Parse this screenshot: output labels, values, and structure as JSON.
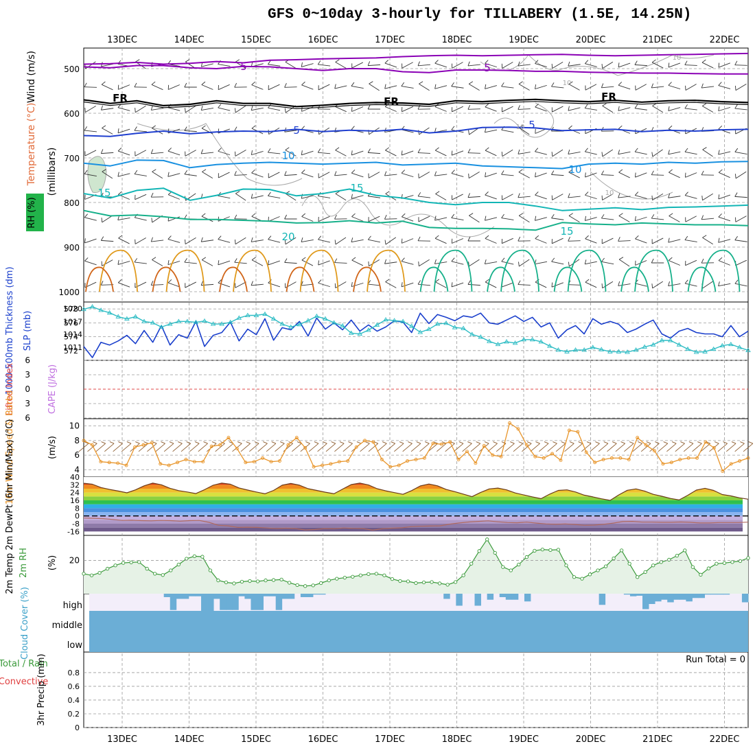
{
  "title": "GFS 0~10day 3-hourly for TILLABERY (1.5E, 14.25N)",
  "dates": [
    "13DEC",
    "14DEC",
    "15DEC",
    "16DEC",
    "17DEC",
    "18DEC",
    "19DEC",
    "20DEC",
    "21DEC",
    "22DEC"
  ],
  "colors": {
    "temp_purple": "#8a00b5",
    "temp_freezing": "#000000",
    "temp_blue": "#1f3fcf",
    "temp_lightblue": "#1890e0",
    "temp_teal": "#12b5b5",
    "temp_green": "#16b08a",
    "temp_orange": "#e09a1c",
    "rh_grey": "#a8a8a8",
    "thickness": "#1a3fcc",
    "slp": "#2cbcc4",
    "wind10": "#e8952a",
    "cloud": "#6baed6",
    "rh_green": "#3a9a3a",
    "rh_fill": "#e6f2e6"
  },
  "chart_data": [
    {
      "type": "line",
      "panel": "upper_air",
      "ylabel_parts": [
        "Wind (m/s)",
        "Temperature (°C)",
        "RH (%)",
        "(millibars)"
      ],
      "yticks": [
        500,
        600,
        700,
        800,
        900,
        1000
      ],
      "ylim": [
        1000,
        450
      ],
      "contour_labels": [
        "5",
        "5",
        "FR",
        "FR",
        "FR",
        "5",
        "5",
        "10",
        "10",
        "15",
        "15",
        "20",
        "15",
        "10",
        "10",
        "10",
        "10"
      ],
      "series": [
        {
          "value_label": "-5 line top",
          "values": [
            490,
            489,
            486,
            490,
            488,
            484,
            487,
            481,
            480,
            478,
            477,
            476,
            473,
            471,
            470,
            471,
            470,
            469,
            468,
            470,
            471,
            470,
            469,
            468,
            467,
            466
          ]
        },
        {
          "value_label": "-5 line",
          "values": [
            496,
            498,
            493,
            493,
            498,
            500,
            495,
            496,
            500,
            504,
            500,
            500,
            507,
            509,
            503,
            503,
            504,
            506,
            506,
            508,
            509,
            510,
            510,
            511,
            512,
            512
          ]
        },
        {
          "value_label": "FR",
          "values": [
            570,
            578,
            572,
            583,
            580,
            572,
            578,
            578,
            585,
            582,
            578,
            576,
            577,
            580,
            572,
            574,
            571,
            569,
            572,
            574,
            571,
            575,
            572,
            571,
            574,
            576
          ]
        },
        {
          "value_label": "5",
          "values": [
            650,
            652,
            645,
            640,
            646,
            642,
            640,
            641,
            636,
            641,
            638,
            640,
            636,
            644,
            640,
            632,
            631,
            633,
            639,
            637,
            636,
            641,
            638,
            640,
            637,
            636
          ]
        },
        {
          "value_label": "10",
          "values": [
            712,
            718,
            705,
            706,
            722,
            715,
            712,
            710,
            712,
            714,
            712,
            710,
            716,
            714,
            712,
            718,
            720,
            722,
            724,
            714,
            712,
            714,
            710,
            712,
            709,
            708
          ]
        },
        {
          "value_label": "15",
          "values": [
            780,
            790,
            773,
            768,
            795,
            784,
            770,
            771,
            785,
            780,
            770,
            784,
            790,
            800,
            805,
            800,
            800,
            808,
            818,
            815,
            812,
            816,
            811,
            810,
            808,
            806
          ]
        },
        {
          "value_label": "20",
          "values": [
            818,
            830,
            828,
            832,
            838,
            838,
            840,
            842,
            846,
            845,
            841,
            846,
            842,
            856,
            858,
            858,
            859,
            862,
            845,
            848,
            850,
            846,
            848,
            850,
            850,
            852
          ]
        }
      ]
    },
    {
      "type": "line",
      "panel": "thickness_slp",
      "left_axis_label": "1000-500mb Thickness (dm)",
      "right_axis_label": "SLP (mb)",
      "left_ticks": [
        572,
        574,
        576,
        578
      ],
      "right_ticks": [
        1011,
        1014,
        1017,
        1020
      ],
      "series": [
        {
          "name_label": "thickness",
          "values": [
            572.6,
            571.0,
            573.2,
            572.8,
            573.4,
            574.2,
            573.0,
            574.9,
            573.2,
            575.6,
            572.8,
            574.3,
            573.8,
            576.2,
            572.6,
            574.2,
            574.6,
            576.1,
            573.4,
            575.1,
            574.3,
            576.6,
            573.5,
            575.3,
            575.0,
            576.2,
            574.1,
            576.7,
            575.1,
            576.0,
            575.0,
            576.4,
            574.8,
            575.7,
            574.8,
            575.4,
            576.3,
            576.1,
            574.6,
            577.4,
            575.9,
            577.2,
            576.8,
            576.3,
            577.0,
            576.8,
            577.4,
            576.0,
            575.8,
            576.4,
            577.0,
            576.2,
            576.8,
            575.4,
            576.0,
            573.8,
            575.0,
            575.6,
            574.4,
            576.6,
            575.8,
            576.2,
            575.8,
            574.6,
            575.1,
            575.8,
            576.4,
            574.4,
            573.8,
            574.8,
            575.2,
            574.6,
            574.4,
            574.4,
            574.0,
            575.6,
            574.0,
            574.8
          ]
        },
        {
          "name_label": "SLP",
          "values": [
            1019.8,
            1020.4,
            1019.6,
            1019.0,
            1018.1,
            1017.6,
            1018.1,
            1017.0,
            1016.7,
            1015.7,
            1016.4,
            1017.0,
            1017.0,
            1016.8,
            1017.1,
            1016.4,
            1016.4,
            1016.8,
            1017.8,
            1018.4,
            1018.4,
            1018.7,
            1017.6,
            1016.4,
            1015.7,
            1016.3,
            1017.2,
            1018.2,
            1017.6,
            1016.7,
            1016.0,
            1014.3,
            1014.1,
            1015.0,
            1016.2,
            1017.4,
            1017.2,
            1017.0,
            1015.9,
            1014.5,
            1015.2,
            1016.4,
            1016.6,
            1015.6,
            1015.4,
            1014.0,
            1013.4,
            1012.4,
            1011.7,
            1012.3,
            1012.0,
            1012.8,
            1012.8,
            1012.3,
            1011.3,
            1010.4,
            1010.0,
            1010.4,
            1010.4,
            1011.0,
            1010.5,
            1010.0,
            1010.0,
            1009.9,
            1010.4,
            1011.1,
            1011.6,
            1012.6,
            1012.6,
            1011.6,
            1010.6,
            1009.9,
            1010.0,
            1010.6,
            1011.4,
            1011.7,
            1011.0,
            1010.3
          ]
        }
      ]
    },
    {
      "type": "line",
      "panel": "stability",
      "left_axis_label": "Lifted Index",
      "right_axis_label": "CAPE (J/kg)",
      "yticks": [
        6,
        3,
        0,
        -3,
        -6
      ],
      "ylim": [
        6,
        -6
      ],
      "series": [
        {
          "name_label": "lifted index zero",
          "values": [
            0
          ]
        }
      ]
    },
    {
      "type": "line",
      "panel": "wind10m",
      "ylabel": "10m Wind Speed & Barbs",
      "unit": "(m/s)",
      "yticks": [
        4,
        6,
        8,
        10
      ],
      "ylim": [
        3,
        11
      ],
      "series": [
        {
          "name_label": "10m wind speed",
          "values": [
            8.0,
            7.4,
            5.1,
            5.0,
            4.9,
            4.6,
            7.1,
            7.4,
            7.7,
            4.8,
            4.6,
            5.0,
            5.4,
            5.1,
            5.1,
            7.2,
            7.4,
            8.4,
            6.9,
            5.0,
            5.1,
            5.6,
            5.1,
            5.2,
            7.4,
            8.4,
            7.0,
            4.4,
            4.6,
            4.8,
            5.1,
            5.2,
            7.1,
            8.0,
            7.8,
            5.4,
            4.4,
            4.6,
            5.2,
            5.4,
            5.6,
            7.6,
            7.5,
            7.8,
            5.4,
            6.5,
            4.9,
            7.3,
            6.0,
            5.8,
            10.4,
            9.6,
            7.4,
            5.8,
            5.6,
            6.2,
            5.3,
            9.4,
            9.2,
            6.4,
            5.0,
            5.4,
            5.6,
            5.6,
            5.4,
            8.4,
            7.4,
            6.6,
            4.8,
            5.0,
            5.4,
            5.6,
            5.6,
            7.8,
            7.0,
            3.8,
            4.8,
            5.2,
            5.6
          ]
        }
      ]
    },
    {
      "type": "area",
      "panel": "temperature2m",
      "ylabel": "2m Temp 2m DewPt (6hr Min/Max) (°C)",
      "yticks": [
        40,
        32,
        24,
        16,
        8,
        0,
        -8,
        -16
      ],
      "ylim": [
        -20,
        40
      ],
      "series": [
        {
          "name_label": "2m temp",
          "values": [
            33.6,
            32.6,
            29.2,
            27.2,
            25.6,
            23.8,
            26.8,
            31.0,
            33.8,
            32.0,
            28.4,
            26.0,
            24.6,
            23.0,
            27.0,
            31.6,
            33.8,
            32.6,
            28.8,
            26.6,
            24.6,
            22.8,
            26.2,
            31.6,
            33.4,
            31.6,
            28.0,
            26.2,
            24.4,
            22.8,
            27.6,
            32.2,
            33.8,
            31.8,
            28.0,
            25.8,
            24.0,
            22.2,
            26.0,
            30.8,
            32.8,
            31.0,
            27.2,
            25.0,
            22.4,
            19.8,
            24.2,
            27.8,
            28.6,
            26.8,
            23.6,
            21.6,
            19.6,
            17.8,
            22.4,
            26.2,
            26.8,
            24.6,
            21.4,
            19.6,
            17.6,
            16.0,
            21.6,
            26.4,
            27.8,
            25.6,
            22.2,
            20.2,
            18.0,
            16.4,
            21.2,
            26.6,
            28.4,
            26.2,
            22.0,
            20.6,
            18.6,
            17.2
          ]
        },
        {
          "name_label": "2m dewpoint",
          "values": [
            -2.2,
            -2.4,
            -2.8,
            -3.6,
            -4.6,
            -4.4,
            -4.8,
            -5.0,
            -4.6,
            -4.8,
            -5.4,
            -4.8,
            -4.6,
            -6.6,
            -9.6,
            -10.2,
            -11.8,
            -11.6,
            -11.8,
            -12.4,
            -13.0,
            -12.6,
            -13.0,
            -14.4,
            -14.0,
            -13.0,
            -13.2,
            -12.4,
            -12.8,
            -13.0,
            -14.6,
            -13.2,
            -12.6,
            -12.2,
            -11.0,
            -10.6,
            -10.4,
            -10.2,
            -8.4,
            -7.2,
            -6.2,
            -5.6,
            -5.0,
            -6.0,
            -6.8,
            -7.0,
            -6.4,
            -7.4,
            -8.2,
            -8.6,
            -8.2,
            -8.8,
            -9.6,
            -9.4,
            -8.6,
            -7.4,
            -5.8,
            -5.6,
            -6.4,
            -6.4,
            -6.6,
            -6.6,
            -6.2,
            -6.6,
            -7.2,
            -7.2,
            -6.8,
            -6.8,
            -6.8,
            -6.4
          ]
        }
      ]
    },
    {
      "type": "area",
      "panel": "rh2m",
      "ylabel": "2m RH",
      "unit": "(%)",
      "yticks": [
        20
      ],
      "ylim": [
        0,
        35
      ],
      "series": [
        {
          "name_label": "2m RH",
          "values": [
            12.0,
            11.0,
            12.5,
            15.0,
            17.0,
            18.5,
            18.8,
            19.0,
            15.0,
            12.0,
            11.2,
            14.0,
            17.5,
            21.0,
            22.5,
            22.2,
            14.0,
            8.0,
            6.8,
            6.2,
            7.2,
            7.6,
            7.4,
            8.0,
            8.2,
            8.5,
            6.6,
            5.2,
            4.6,
            5.0,
            6.4,
            8.0,
            9.0,
            9.6,
            10.2,
            11.0,
            11.8,
            12.0,
            11.0,
            8.8,
            7.6,
            7.4,
            6.4,
            6.8,
            7.0,
            6.2,
            5.4,
            7.0,
            11.0,
            18.0,
            25.6,
            32.6,
            24.5,
            16.0,
            14.0,
            17.5,
            22.0,
            25.8,
            26.5,
            26.2,
            26.4,
            17.0,
            10.0,
            9.0,
            11.6,
            14.0,
            16.4,
            21.2,
            26.0,
            18.0,
            10.0,
            13.0,
            17.0,
            19.0,
            20.4,
            22.8,
            26.0,
            16.0,
            11.4,
            15.2,
            18.0,
            18.4,
            19.0,
            19.6,
            21.4
          ]
        }
      ]
    },
    {
      "type": "bar",
      "panel": "cloud_cover",
      "ylabel": "Cloud Cover (%)",
      "levels": [
        "high",
        "middle",
        "low"
      ],
      "series": [
        {
          "name_label": "high cloud",
          "values": [
            0,
            0,
            0,
            0,
            0,
            0,
            0,
            0,
            0,
            0,
            0,
            0,
            0.2,
            0.95,
            0.3,
            0.3,
            0.15,
            0.15,
            1.0,
            1.0,
            0.3,
            0.95,
            0.95,
            0.95,
            0.15,
            0.3,
            0.95,
            0.95,
            0.15,
            0.15,
            0.95,
            0.3,
            0.3,
            0,
            0.2,
            0.2,
            0.05,
            0.05,
            0,
            0,
            0,
            0,
            0,
            0,
            0,
            0,
            0,
            0,
            0,
            0,
            0,
            0,
            0,
            0,
            0,
            0,
            0,
            0.3,
            0,
            0.7,
            0,
            0,
            0.7,
            0,
            0.35,
            0,
            0.2,
            0.35,
            0.35,
            0,
            0.45,
            0,
            0,
            0,
            0,
            0,
            0,
            0,
            0,
            0,
            0,
            0,
            0.65,
            0,
            0,
            0,
            0.05,
            0.15,
            0.12,
            0.9,
            0.6,
            0.45,
            0.35,
            0.5,
            0.35,
            0.35,
            0.45,
            0.25,
            0.25,
            0.05,
            0.05,
            0.05,
            0.05,
            0,
            0,
            0.5
          ]
        },
        {
          "name_label": "middle cloud",
          "values": [
            1.0
          ]
        },
        {
          "name_label": "low cloud",
          "values": [
            1.0
          ]
        }
      ]
    },
    {
      "type": "bar",
      "panel": "precip",
      "ylabel": "3hr Precip (mm)",
      "legend": [
        "Total / Rain",
        "Convective"
      ],
      "yticks": [
        "0",
        "0.2",
        "0.4",
        "0.6",
        "0.8"
      ],
      "ylim": [
        0,
        0.9
      ],
      "annotation": "Run Total = 0",
      "series": [
        {
          "name_label": "precip",
          "values": []
        }
      ]
    }
  ]
}
